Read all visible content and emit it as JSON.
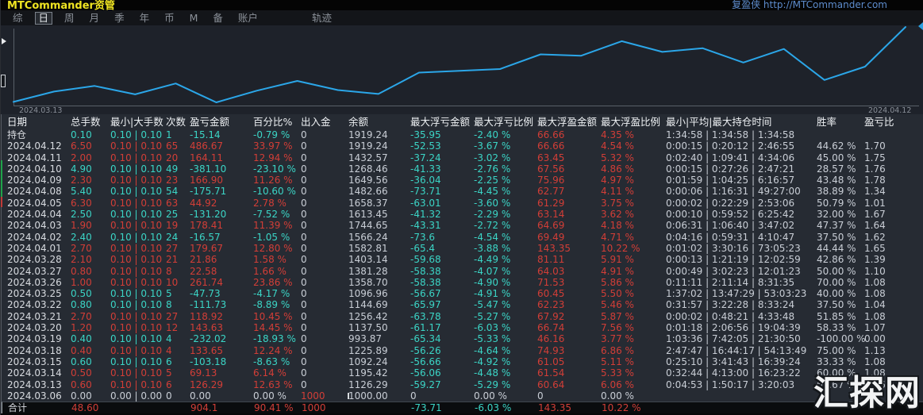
{
  "window": {
    "title": "MTCommander资管",
    "brand": "复盈侠 http://MTCommander.com"
  },
  "menu": {
    "items": [
      "综",
      "日",
      "周",
      "月",
      "季",
      "年",
      "币",
      "M",
      "备",
      "账户"
    ],
    "selected_index": 1,
    "track_item": "轨迹"
  },
  "chart": {
    "start_label": "2024.03.13",
    "end_label": "2024.04.12"
  },
  "chart_data": {
    "type": "line",
    "title": "",
    "xlabel": "",
    "ylabel": "余额",
    "x": [
      "2024.03.06",
      "2024.03.13",
      "2024.03.14",
      "2024.03.15",
      "2024.03.18",
      "2024.03.19",
      "2024.03.20",
      "2024.03.21",
      "2024.03.22",
      "2024.03.25",
      "2024.03.26",
      "2024.03.27",
      "2024.03.28",
      "2024.04.01",
      "2024.04.02",
      "2024.04.03",
      "2024.04.04",
      "2024.04.05",
      "2024.04.08",
      "2024.04.09",
      "2024.04.10",
      "2024.04.11",
      "2024.04.12"
    ],
    "series": [
      {
        "name": "余额",
        "values": [
          1000.0,
          1126.29,
          1195.42,
          1092.24,
          1225.89,
          993.87,
          1137.5,
          1256.42,
          1144.69,
          1096.96,
          1358.7,
          1381.28,
          1403.14,
          1582.81,
          1566.24,
          1744.65,
          1613.45,
          1658.37,
          1482.66,
          1649.56,
          1268.46,
          1432.57,
          1919.24
        ]
      }
    ],
    "ylim": [
      993.87,
      1919.24
    ],
    "x_axis_labels_shown": [
      "2024.03.13",
      "2024.04.12"
    ],
    "legend": "none",
    "grid": "off",
    "line_color": "#2ba6e8"
  },
  "table": {
    "headers": [
      "日期",
      "总手数",
      "最小|大手数",
      "次数",
      "盈亏金额",
      "百分比%",
      "出入金",
      "余额",
      "最大浮亏金额",
      "最大浮亏比例",
      "最大浮盈金额",
      "最大浮盈比例",
      "最小|平均|最大持仓时间",
      "胜率",
      "盈亏比"
    ],
    "rows": [
      {
        "tone": "loss",
        "cells": [
          "持仓",
          "0.10",
          "0.10 | 0.10",
          "1",
          "-15.14",
          "-0.79 %",
          "0",
          "1919.24",
          "-35.95",
          "-2.40 %",
          "66.66",
          "4.35 %",
          "1:34:58 | 1:34:58 | 1:34:58",
          "",
          ""
        ]
      },
      {
        "tone": "gain",
        "cells": [
          "2024.04.12",
          "6.50",
          "0.10 | 0.10",
          "65",
          "486.67",
          "33.97 %",
          "0",
          "1919.24",
          "-52.53",
          "-3.67 %",
          "66.66",
          "4.54 %",
          "0:00:15 | 0:20:12 | 2:46:55",
          "44.62 %",
          "1.70"
        ]
      },
      {
        "tone": "gain",
        "cells": [
          "2024.04.11",
          "2.00",
          "0.10 | 0.10",
          "20",
          "164.11",
          "12.94 %",
          "0",
          "1432.57",
          "-37.24",
          "-3.02 %",
          "63.45",
          "5.32 %",
          "0:02:40 | 1:09:41 | 4:34:06",
          "45.00 %",
          "1.75"
        ]
      },
      {
        "tone": "loss",
        "cells": [
          "2024.04.10",
          "4.90",
          "0.10 | 0.10",
          "49",
          "-381.10",
          "-23.10 %",
          "0",
          "1268.46",
          "-41.33",
          "-2.76 %",
          "67.56",
          "4.86 %",
          "0:00:15 | 0:27:26 | 2:47:21",
          "28.57 %",
          "1.76"
        ]
      },
      {
        "tone": "gain",
        "cells": [
          "2024.04.09",
          "2.30",
          "0.10 | 0.10",
          "23",
          "166.90",
          "11.26 %",
          "0",
          "1649.56",
          "-36.04",
          "-2.25 %",
          "75.96",
          "4.97 %",
          "0:01:59 | 1:04:25 | 6:16:57",
          "43.48 %",
          "1.78"
        ]
      },
      {
        "tone": "loss",
        "cells": [
          "2024.04.08",
          "5.40",
          "0.10 | 0.10",
          "54",
          "-175.71",
          "-10.60 %",
          "0",
          "1482.66",
          "-73.71",
          "-4.45 %",
          "62.77",
          "4.11 %",
          "0:00:06 | 1:16:31 | 49:27:00",
          "38.89 %",
          "1.34"
        ]
      },
      {
        "tone": "gain",
        "cells": [
          "2024.04.05",
          "6.30",
          "0.10 | 0.10",
          "63",
          "44.92",
          "2.78 %",
          "0",
          "1658.37",
          "-63.01",
          "-3.60 %",
          "61.29",
          "3.75 %",
          "0:00:02 | 0:22:29 | 2:53:06",
          "50.79 %",
          "1.01"
        ]
      },
      {
        "tone": "loss",
        "cells": [
          "2024.04.04",
          "2.50",
          "0.10 | 0.10",
          "25",
          "-131.20",
          "-7.52 %",
          "0",
          "1613.45",
          "-41.32",
          "-2.29 %",
          "63.14",
          "3.62 %",
          "0:00:10 | 0:59:52 | 6:25:42",
          "32.00 %",
          "1.67"
        ]
      },
      {
        "tone": "gain",
        "cells": [
          "2024.04.03",
          "1.90",
          "0.10 | 0.10",
          "19",
          "178.41",
          "11.39 %",
          "0",
          "1744.65",
          "-43.31",
          "-2.72 %",
          "64.69",
          "4.18 %",
          "0:06:31 | 1:06:40 | 3:47:02",
          "47.37 %",
          "1.64"
        ]
      },
      {
        "tone": "loss",
        "cells": [
          "2024.04.02",
          "2.40",
          "0.10 | 0.10",
          "24",
          "-16.57",
          "-1.05 %",
          "0",
          "1566.24",
          "-73.6",
          "-4.54 %",
          "69.49",
          "4.71 %",
          "0:04:16 | 0:59:31 | 4:10:47",
          "37.50 %",
          "1.62"
        ]
      },
      {
        "tone": "gain",
        "cells": [
          "2024.04.01",
          "2.70",
          "0.10 | 0.10",
          "27",
          "179.67",
          "12.80 %",
          "0",
          "1582.81",
          "-65.4",
          "-3.88 %",
          "143.35",
          "10.22 %",
          "0:01:02 | 3:30:16 | 73:05:23",
          "44.44 %",
          "1.65"
        ]
      },
      {
        "tone": "gain",
        "cells": [
          "2024.03.28",
          "2.10",
          "0.10 | 0.10",
          "21",
          "21.86",
          "1.58 %",
          "0",
          "1403.14",
          "-59.68",
          "-4.49 %",
          "81.11",
          "5.91 %",
          "0:00:13 | 1:21:19 | 12:02:59",
          "42.86 %",
          "1.39"
        ]
      },
      {
        "tone": "gain",
        "cells": [
          "2024.03.27",
          "0.80",
          "0.10 | 0.10",
          "8",
          "22.58",
          "1.66 %",
          "0",
          "1381.28",
          "-58.38",
          "-4.07 %",
          "64.03",
          "4.91 %",
          "0:00:49 | 3:02:23 | 12:01:23",
          "50.00 %",
          "1.10"
        ]
      },
      {
        "tone": "gain",
        "cells": [
          "2024.03.26",
          "1.00",
          "0.10 | 0.10",
          "10",
          "261.74",
          "23.86 %",
          "0",
          "1358.70",
          "-58.38",
          "-4.90 %",
          "71.53",
          "5.86 %",
          "0:11:11 | 2:11:14 | 8:31:35",
          "70.00 %",
          "1.08"
        ]
      },
      {
        "tone": "loss",
        "cells": [
          "2024.03.25",
          "0.50",
          "0.10 | 0.10",
          "5",
          "-47.73",
          "-4.17 %",
          "0",
          "1096.96",
          "-56.67",
          "-4.91 %",
          "60.45",
          "5.50 %",
          "1:37:02 | 13:47:29 | 53:03:23",
          "40.00 %",
          "1.08"
        ]
      },
      {
        "tone": "loss",
        "cells": [
          "2024.03.22",
          "0.80",
          "0.10 | 0.10",
          "8",
          "-111.73",
          "-8.89 %",
          "0",
          "1144.69",
          "-65.97",
          "-5.47 %",
          "62.23",
          "5.46 %",
          "0:31:57 | 3:22:28 | 8:33:24",
          "37.50 %",
          "1.04"
        ]
      },
      {
        "tone": "gain",
        "cells": [
          "2024.03.21",
          "2.70",
          "0.10 | 0.10",
          "27",
          "118.92",
          "10.45 %",
          "0",
          "1256.42",
          "-63.78",
          "-5.27 %",
          "67.92",
          "5.87 %",
          "0:00:02 | 0:48:21 | 4:33:48",
          "51.85 %",
          "1.08"
        ]
      },
      {
        "tone": "gain",
        "cells": [
          "2024.03.20",
          "1.20",
          "0.10 | 0.10",
          "12",
          "143.63",
          "14.45 %",
          "0",
          "1137.50",
          "-61.17",
          "-6.03 %",
          "66.74",
          "7.56 %",
          "0:01:18 | 2:06:56 | 19:04:39",
          "58.33 %",
          "1.07"
        ]
      },
      {
        "tone": "loss",
        "cells": [
          "2024.03.19",
          "0.40",
          "0.10 | 0.10",
          "4",
          "-232.02",
          "-18.93 %",
          "0",
          "993.87",
          "-65.34",
          "-5.33 %",
          "46.16",
          "3.77 %",
          "1:03:36 | 7:42:05 | 21:30:50",
          "-100.00 %",
          "0.00"
        ]
      },
      {
        "tone": "gain",
        "cells": [
          "2024.03.18",
          "0.40",
          "0.10 | 0.10",
          "4",
          "133.65",
          "12.24 %",
          "0",
          "1225.89",
          "-56.26",
          "-4.64 %",
          "74.93",
          "6.86 %",
          "2:47:47 | 16:44:17 | 54:13:49",
          "75.00 %",
          "1.13"
        ]
      },
      {
        "tone": "loss",
        "cells": [
          "2024.03.15",
          "0.60",
          "0.10 | 0.10",
          "6",
          "-103.18",
          "-8.63 %",
          "0",
          "1092.24",
          "-56.66",
          "-4.92 %",
          "61.05",
          "5.11 %",
          "0:25:10 | 3:41:43 | 16:39:24",
          "33.33 %",
          "1.08"
        ]
      },
      {
        "tone": "gain",
        "cells": [
          "2024.03.14",
          "0.50",
          "0.10 | 0.10",
          "5",
          "69.13",
          "6.14 %",
          "0",
          "1195.42",
          "-56.06",
          "-4.48 %",
          "61.54",
          "5.33 %",
          "0:32:44 | 4:13:00 | 16:23:22",
          "60.00 %",
          "1.08"
        ]
      },
      {
        "tone": "gain",
        "cells": [
          "2024.03.13",
          "0.60",
          "0.10 | 0.10",
          "6",
          "126.29",
          "12.63 %",
          "0",
          "1126.29",
          "-59.27",
          "-5.29 %",
          "60.64",
          "6.06 %",
          "0:04:53 | 1:50:17 | 3:20:03",
          "66.67 %",
          "1.06"
        ]
      },
      {
        "tone": "flat",
        "cells": [
          "2024.03.06",
          "0.00",
          "0.00 | 0.00",
          "0",
          "0.00",
          "0.00 %",
          "1000",
          "1000.00",
          "0",
          "0.00 %",
          "0",
          "0.00 %",
          "",
          "",
          ""
        ]
      }
    ],
    "total": {
      "tone": "gain",
      "cells": [
        "合计",
        "48.60",
        "",
        "",
        "904.1",
        "90.41 %",
        "1000",
        "",
        "-73.71",
        "-6.03 %",
        "143.35",
        "10.22 %",
        "",
        "",
        ""
      ]
    }
  },
  "watermark": "汇探网",
  "colors": {
    "gain_red": "#d23e37",
    "loss_cyan": "#3bd5c6",
    "chart_line": "#2ba6e8",
    "title_yellow": "#efe422",
    "brand_blue": "#5d8ccd",
    "table_bg": "#262b33",
    "chart_bg": "#1e222a"
  }
}
